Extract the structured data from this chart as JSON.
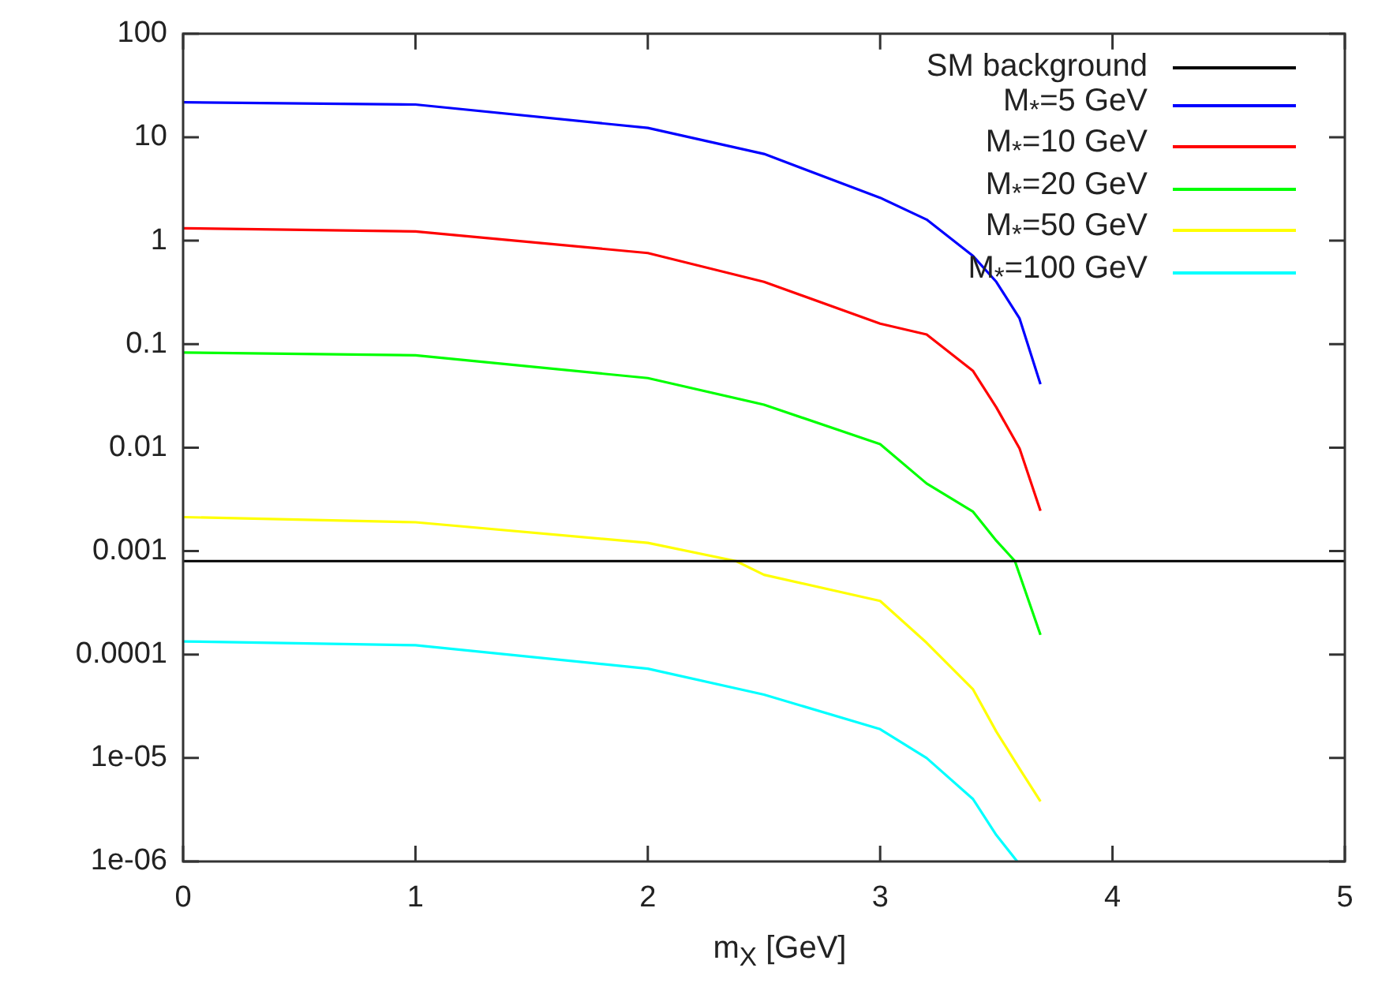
{
  "chart_data": {
    "type": "line",
    "xlabel": "m$_{X}$ [GeV]",
    "xlim": [
      0,
      5
    ],
    "xticks": [
      0,
      1,
      2,
      3,
      4,
      5
    ],
    "ylim": [
      1e-06,
      100
    ],
    "log": "y",
    "yticks": [
      100,
      10,
      1,
      0.1,
      0.01,
      0.001,
      0.0001,
      {
        "value": 1e-05,
        "label": "1e-05"
      },
      {
        "value": 1e-06,
        "label": "1e-06"
      }
    ],
    "grid": false,
    "legend": "top right",
    "marker": "none",
    "line_style": "solid",
    "series": [
      {
        "name": "SM background",
        "color": "#000000",
        "x": [
          0,
          5
        ],
        "values": [
          0.0008,
          0.0008
        ]
      },
      {
        "name": "M$_{*}$=5 GeV",
        "color": "#0000ff",
        "x": [
          0,
          1,
          2,
          2.5,
          3,
          3.2,
          3.4,
          3.5,
          3.6,
          3.69
        ],
        "values": [
          21.8,
          20.7,
          12.3,
          6.9,
          2.6,
          1.6,
          0.71,
          0.4,
          0.177,
          0.041
        ]
      },
      {
        "name": "M$_{*}$=10 GeV",
        "color": "#ff0000",
        "x": [
          0,
          1,
          2,
          2.5,
          3,
          3.2,
          3.4,
          3.5,
          3.6,
          3.69
        ],
        "values": [
          1.32,
          1.23,
          0.76,
          0.4,
          0.158,
          0.124,
          0.055,
          0.0245,
          0.0098,
          0.00245
        ]
      },
      {
        "name": "M$_{*}$=20 GeV",
        "color": "#00ff00",
        "x": [
          0,
          1,
          2,
          2.5,
          3,
          3.2,
          3.4,
          3.5,
          3.58,
          3.69
        ],
        "values": [
          0.083,
          0.078,
          0.047,
          0.026,
          0.0108,
          0.0045,
          0.0024,
          0.00126,
          0.0008,
          0.000155
        ]
      },
      {
        "name": "M$_{*}$=50 GeV",
        "color": "#ffff00",
        "x": [
          0,
          1,
          2,
          2.38,
          2.5,
          3,
          3.2,
          3.4,
          3.5,
          3.6,
          3.69
        ],
        "values": [
          0.00213,
          0.0019,
          0.0012,
          0.0008,
          0.00059,
          0.00033,
          0.00013,
          4.6e-05,
          1.8e-05,
          7.9e-06,
          3.8e-06
        ]
      },
      {
        "name": "M$_{*}$=100 GeV",
        "color": "#00ffff",
        "x": [
          0,
          1,
          2,
          2.5,
          3,
          3.2,
          3.4,
          3.5,
          3.59
        ],
        "values": [
          0.000134,
          0.000123,
          7.3e-05,
          4.1e-05,
          1.9e-05,
          1e-05,
          4e-06,
          1.8e-06,
          1e-06
        ]
      }
    ]
  }
}
